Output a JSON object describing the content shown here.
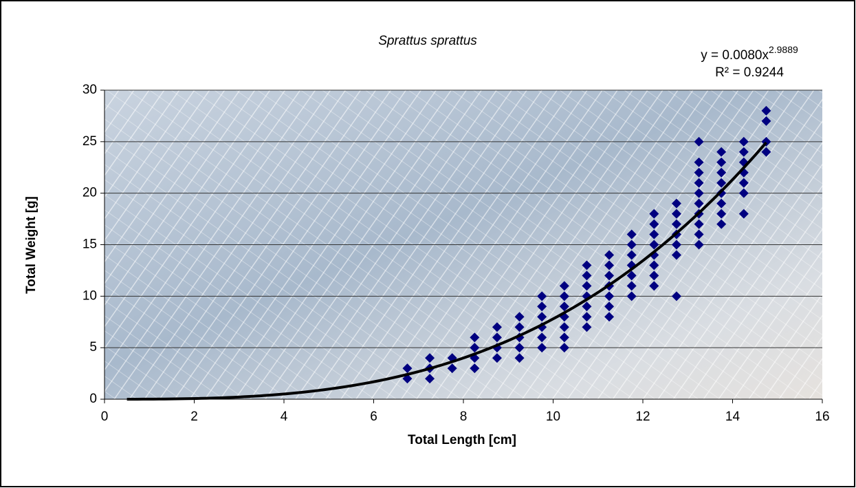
{
  "chart_data": {
    "type": "scatter",
    "title": "Sprattus sprattus",
    "x_label": "Total Length [cm]",
    "y_label": "Total Weight [g]",
    "xlim": [
      0,
      16
    ],
    "ylim": [
      0,
      30
    ],
    "xticks": [
      0,
      2,
      4,
      6,
      8,
      10,
      12,
      14,
      16
    ],
    "yticks": [
      0,
      5,
      10,
      15,
      20,
      25,
      30
    ],
    "grid": true,
    "color": "#000080",
    "x": [
      6.75,
      6.75,
      7.25,
      7.25,
      7.25,
      7.75,
      7.75,
      8.25,
      8.25,
      8.25,
      8.25,
      8.75,
      8.75,
      8.75,
      8.75,
      9.25,
      9.25,
      9.25,
      9.25,
      9.25,
      9.75,
      9.75,
      9.75,
      9.75,
      9.75,
      9.75,
      10.25,
      10.25,
      10.25,
      10.25,
      10.25,
      10.25,
      10.25,
      10.75,
      10.75,
      10.75,
      10.75,
      10.75,
      10.75,
      10.75,
      11.25,
      11.25,
      11.25,
      11.25,
      11.25,
      11.25,
      11.25,
      11.75,
      11.75,
      11.75,
      11.75,
      11.75,
      11.75,
      11.75,
      12.25,
      12.25,
      12.25,
      12.25,
      12.25,
      12.25,
      12.25,
      12.25,
      12.75,
      12.75,
      12.75,
      12.75,
      12.75,
      12.75,
      12.75,
      13.25,
      13.25,
      13.25,
      13.25,
      13.25,
      13.25,
      13.25,
      13.25,
      13.25,
      13.25,
      13.75,
      13.75,
      13.75,
      13.75,
      13.75,
      13.75,
      13.75,
      13.75,
      14.25,
      14.25,
      14.25,
      14.25,
      14.25,
      14.25,
      14.25,
      14.75,
      14.75,
      14.75,
      14.75
    ],
    "y": [
      2,
      3,
      2,
      3,
      4,
      3,
      4,
      3,
      4,
      5,
      6,
      4,
      5,
      6,
      7,
      4,
      5,
      6,
      7,
      8,
      5,
      6,
      7,
      8,
      9,
      10,
      5,
      6,
      7,
      8,
      9,
      10,
      11,
      7,
      8,
      9,
      10,
      11,
      12,
      13,
      8,
      9,
      10,
      11,
      12,
      13,
      14,
      10,
      11,
      12,
      13,
      14,
      15,
      16,
      11,
      12,
      13,
      14,
      15,
      16,
      17,
      18,
      10,
      14,
      15,
      16,
      17,
      18,
      19,
      15,
      16,
      17,
      18,
      19,
      20,
      21,
      22,
      23,
      25,
      17,
      18,
      19,
      20,
      21,
      22,
      23,
      24,
      18,
      20,
      21,
      22,
      23,
      24,
      25,
      24,
      25,
      27,
      28
    ],
    "trendline": {
      "type": "power",
      "a": 0.008,
      "b": 2.9889,
      "x": [
        0.5,
        14.75
      ],
      "equation_label": "y = 0.0080x",
      "exponent_label": "2.9889",
      "r2_label": "R² = 0.9244"
    }
  }
}
